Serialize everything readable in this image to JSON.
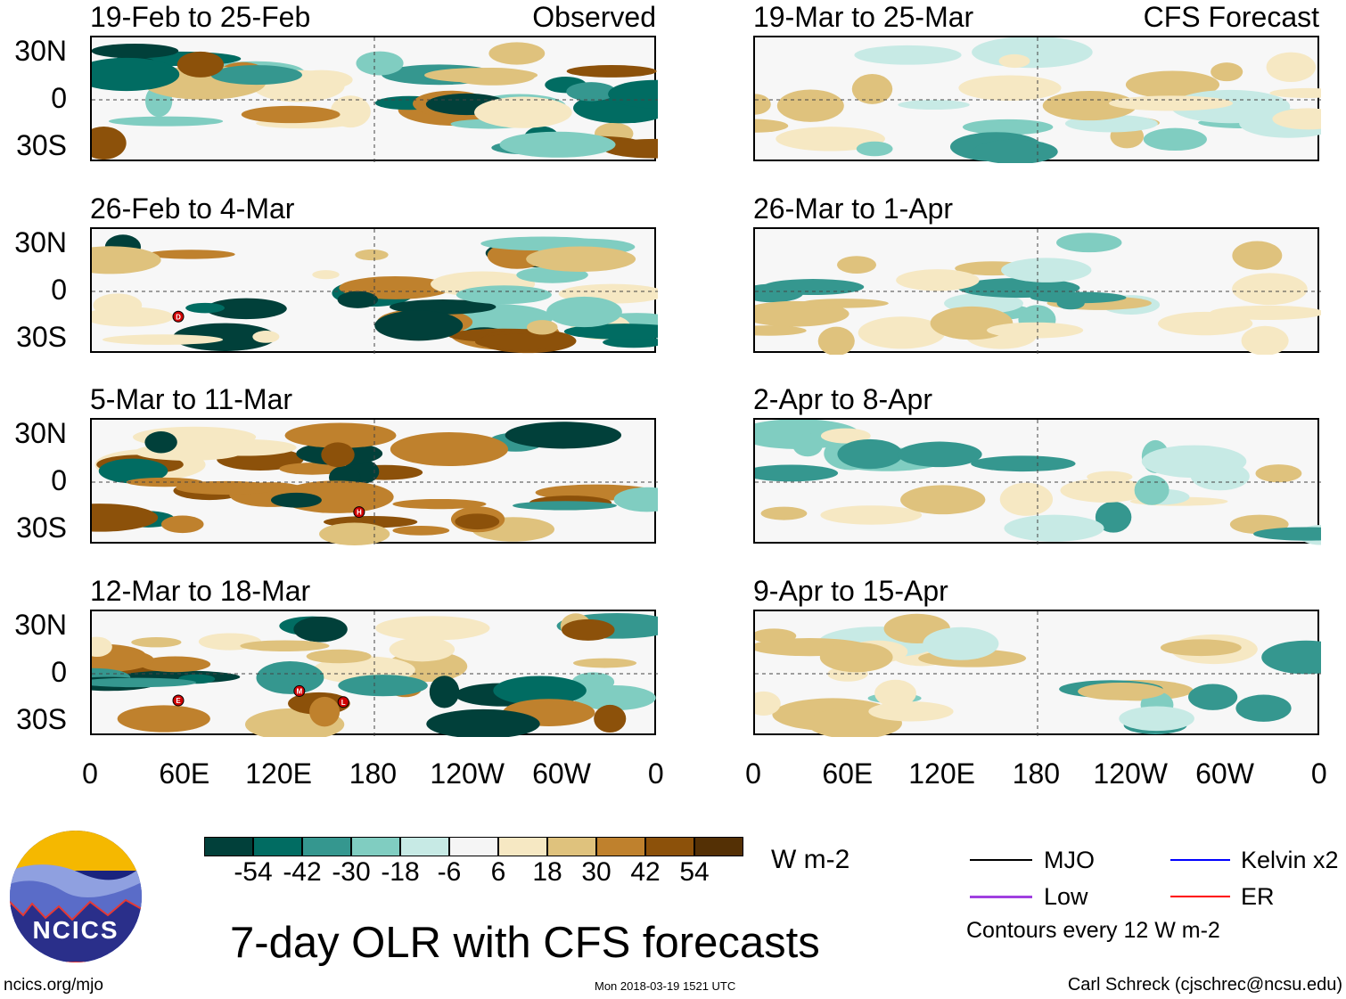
{
  "panels": [
    {
      "title": "19-Feb to 25-Feb",
      "tag": "Observed",
      "storms": []
    },
    {
      "title": "26-Feb to 4-Mar",
      "tag": "",
      "storms": [
        {
          "label": "D",
          "lon": 55,
          "lat": -16
        }
      ]
    },
    {
      "title": "5-Mar to 11-Mar",
      "tag": "",
      "storms": [
        {
          "label": "H",
          "lon": 170,
          "lat": -19
        }
      ]
    },
    {
      "title": "12-Mar to 18-Mar",
      "tag": "",
      "storms": [
        {
          "label": "E",
          "lon": 55,
          "lat": -17
        },
        {
          "label": "M",
          "lon": 132,
          "lat": -11
        },
        {
          "label": "L",
          "lon": 160,
          "lat": -18
        }
      ]
    },
    {
      "title": "19-Mar to 25-Mar",
      "tag": "CFS Forecast",
      "storms": []
    },
    {
      "title": "26-Mar to 1-Apr",
      "tag": "",
      "storms": []
    },
    {
      "title": "2-Apr to 8-Apr",
      "tag": "",
      "storms": []
    },
    {
      "title": "9-Apr to 15-Apr",
      "tag": "",
      "storms": []
    }
  ],
  "lat_labels": [
    "30N",
    "0",
    "30S"
  ],
  "lon_labels": [
    "0",
    "60E",
    "120E",
    "180",
    "120W",
    "60W",
    "0"
  ],
  "colorbar": {
    "colors": [
      "#01403a",
      "#016c62",
      "#35978f",
      "#80cdc1",
      "#c7eae5",
      "#f5f5f5",
      "#f6e8c3",
      "#dfc27d",
      "#bf812d",
      "#8c510a",
      "#543005"
    ],
    "labels": [
      "-54",
      "-42",
      "-30",
      "-18",
      "-6",
      "6",
      "18",
      "30",
      "42",
      "54"
    ],
    "units": "W m-2"
  },
  "legend": {
    "items": [
      {
        "label": "MJO",
        "color": "#000000"
      },
      {
        "label": "Kelvin x2",
        "color": "#0000ff"
      },
      {
        "label": "Low",
        "color": "#a040e0"
      },
      {
        "label": "ER",
        "color": "#ff0000"
      }
    ],
    "note": "Contours every 12 W m-2"
  },
  "logo": {
    "text": "NCICS"
  },
  "main_title": "7-day OLR with CFS forecasts",
  "url": "ncics.org/mjo",
  "timestamp": "Mon 2018-03-19 1521 UTC",
  "author": "Carl Schreck (cjschrec@ncsu.edu)"
}
